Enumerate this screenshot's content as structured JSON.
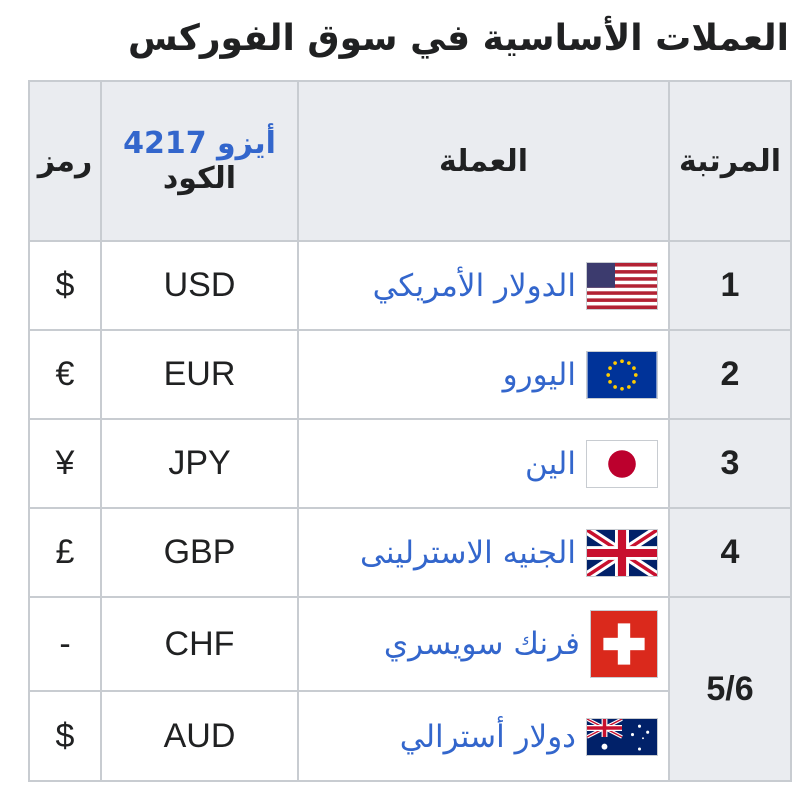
{
  "title": "العملات الأساسية في سوق الفوركس",
  "headers": {
    "rank": "المرتبة",
    "currency": "العملة",
    "iso_link": "أيزو 4217",
    "code": "الكود",
    "symbol": "رمز"
  },
  "rows": [
    {
      "rank": "1",
      "currency": "الدولار الأمريكي",
      "flag": "us-flag",
      "code": "USD",
      "symbol": "$"
    },
    {
      "rank": "2",
      "currency": "اليورو",
      "flag": "eu-flag",
      "code": "EUR",
      "symbol": "€"
    },
    {
      "rank": "3",
      "currency": "الين",
      "flag": "japan-flag",
      "code": "JPY",
      "symbol": "¥"
    },
    {
      "rank": "4",
      "currency": "الجنيه الاسترلينى",
      "flag": "uk-flag",
      "code": "GBP",
      "symbol": "£"
    },
    {
      "rank": "5/6",
      "currency": "فرنك سويسري",
      "flag": "swiss-flag",
      "code": "CHF",
      "symbol": "-"
    },
    {
      "currency": "دولار أسترالي",
      "flag": "australia-flag",
      "code": "AUD",
      "symbol": "$"
    }
  ],
  "colors": {
    "link": "#3366cc",
    "header_bg": "#eaecf0",
    "border": "#c8ccd1"
  }
}
